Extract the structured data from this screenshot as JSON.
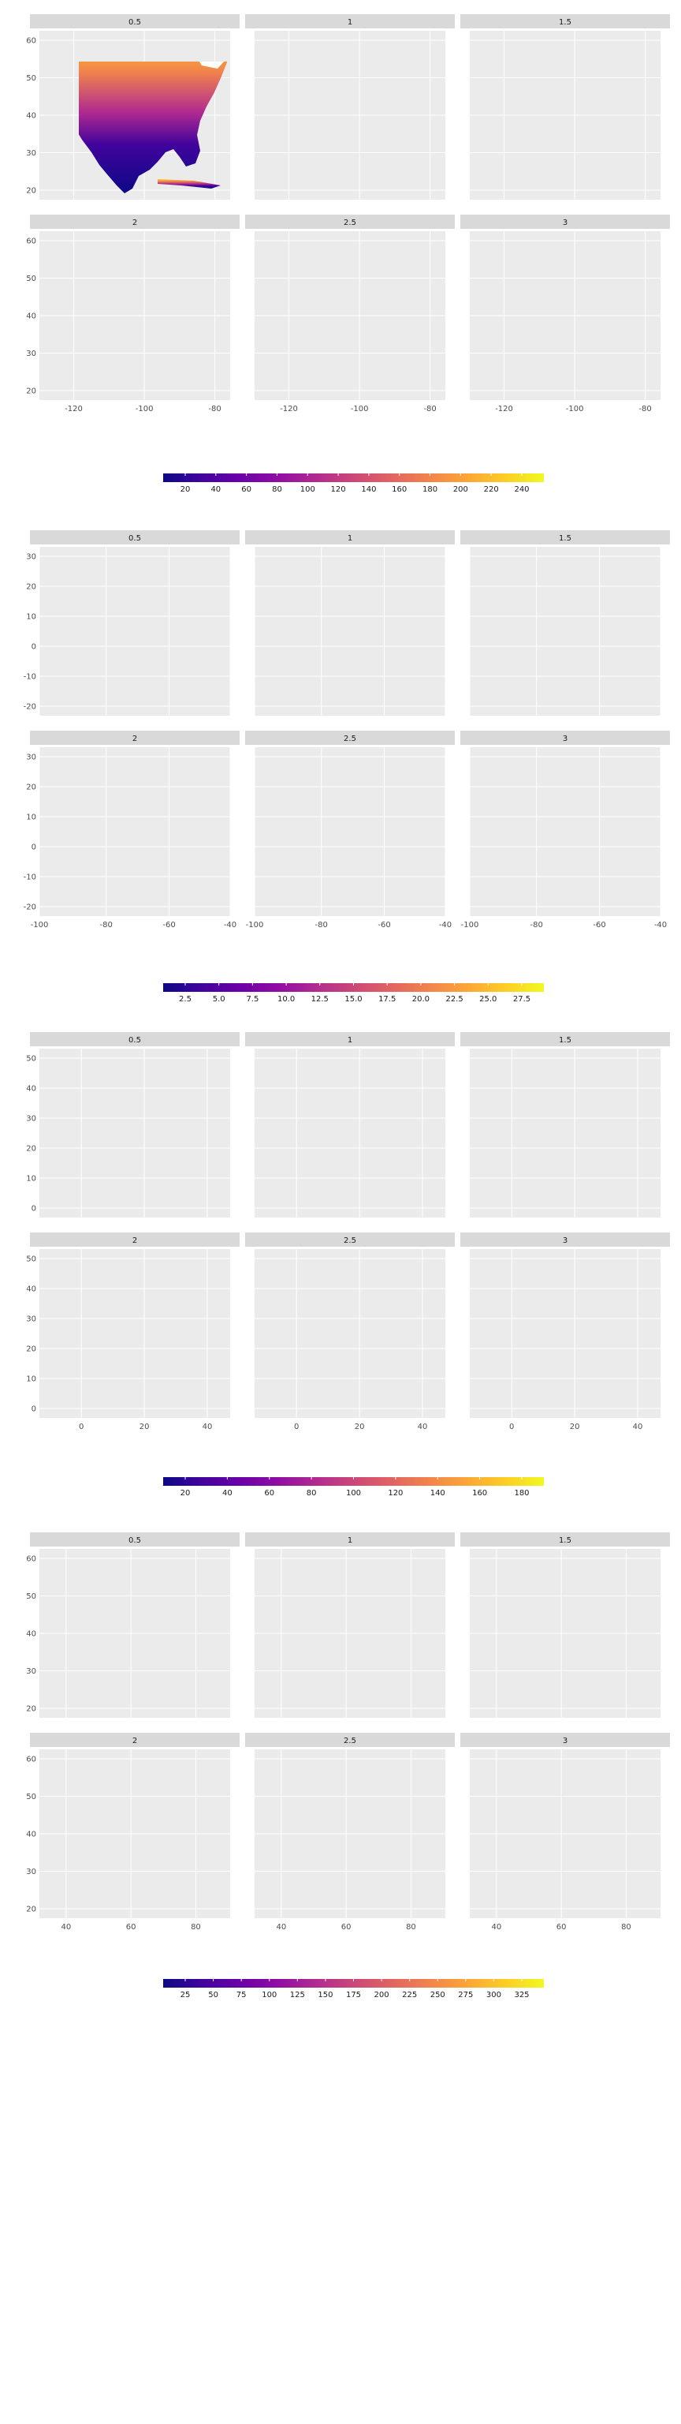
{
  "facet_labels": [
    "0.5",
    "1",
    "1.5",
    "2",
    "2.5",
    "3"
  ],
  "palette": [
    "#0d0887",
    "#41049d",
    "#6a00a8",
    "#8f0da4",
    "#b12a90",
    "#cc4778",
    "#e16462",
    "#f2844b",
    "#fca636",
    "#fcce25",
    "#f0f921"
  ],
  "colors": {
    "panel_background": "#ebebeb",
    "grid": "#ffffff",
    "strip": "#d9d9d9",
    "land_low": "#3d0c95",
    "water": "#ffffff"
  },
  "figures": [
    {
      "name": "north-america",
      "map_icon": "north-america-map",
      "x_ticks": [
        "-120",
        "-100",
        "-80"
      ],
      "y_ticks": [
        "60",
        "50",
        "40",
        "30",
        "20"
      ],
      "legend_ticks": [
        "20",
        "40",
        "60",
        "80",
        "100",
        "120",
        "140",
        "160",
        "180",
        "200",
        "220",
        "240"
      ]
    },
    {
      "name": "south-america",
      "map_icon": "caribbean-south-america-map",
      "x_ticks": [
        "-100",
        "-80",
        "-60",
        "-40"
      ],
      "y_ticks": [
        "30",
        "20",
        "10",
        "0",
        "-10",
        "-20"
      ],
      "legend_ticks": [
        "2.5",
        "5.0",
        "7.5",
        "10.0",
        "12.5",
        "15.0",
        "17.5",
        "20.0",
        "22.5",
        "25.0",
        "27.5"
      ]
    },
    {
      "name": "africa",
      "map_icon": "north-africa-mediterranean-map",
      "x_ticks": [
        "0",
        "20",
        "40"
      ],
      "y_ticks": [
        "50",
        "40",
        "30",
        "20",
        "10",
        "0"
      ],
      "legend_ticks": [
        "20",
        "40",
        "60",
        "80",
        "100",
        "120",
        "140",
        "160",
        "180"
      ]
    },
    {
      "name": "asia",
      "map_icon": "middle-east-central-asia-map",
      "x_ticks": [
        "40",
        "60",
        "80"
      ],
      "y_ticks": [
        "60",
        "50",
        "40",
        "30",
        "20"
      ],
      "legend_ticks": [
        "25",
        "50",
        "75",
        "100",
        "125",
        "150",
        "175",
        "200",
        "225",
        "250",
        "275",
        "300",
        "325"
      ]
    }
  ]
}
